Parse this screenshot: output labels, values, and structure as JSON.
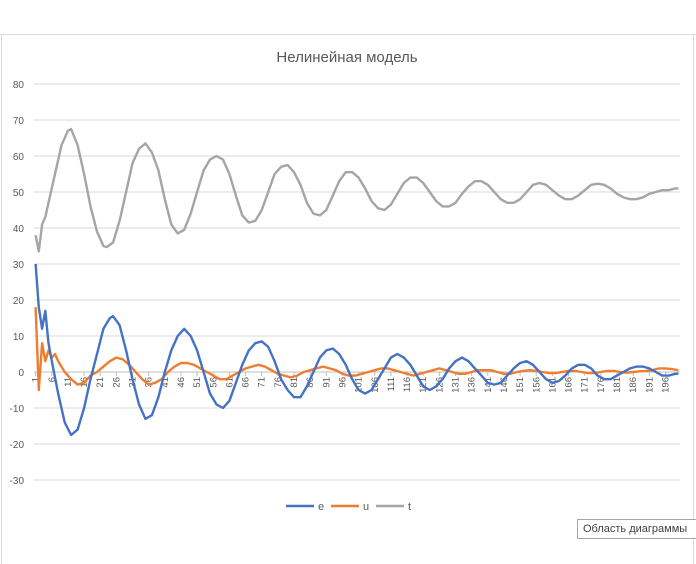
{
  "chart_data": {
    "type": "line",
    "title": "Нелинейная модель",
    "xlabel": "",
    "ylabel": "",
    "ylim": [
      -30,
      80
    ],
    "yticks": [
      80,
      70,
      60,
      50,
      40,
      30,
      20,
      10,
      0,
      -10,
      -20,
      -30
    ],
    "xtick_labels": [
      1,
      6,
      11,
      16,
      21,
      26,
      31,
      36,
      41,
      46,
      51,
      56,
      61,
      66,
      71,
      76,
      81,
      86,
      91,
      96,
      101,
      106,
      111,
      116,
      121,
      126,
      131,
      136,
      141,
      146,
      151,
      156,
      161,
      166,
      171,
      176,
      181,
      186,
      191,
      196
    ],
    "x_range": [
      1,
      200
    ],
    "grid": "horizontal",
    "legend_position": "bottom",
    "series": [
      {
        "name": "e",
        "color": "#4472c4",
        "points": [
          [
            1,
            30
          ],
          [
            2,
            18
          ],
          [
            3,
            12
          ],
          [
            4,
            17
          ],
          [
            5,
            8
          ],
          [
            6,
            3
          ],
          [
            8,
            -6
          ],
          [
            10,
            -14
          ],
          [
            12,
            -17.5
          ],
          [
            14,
            -16
          ],
          [
            16,
            -10
          ],
          [
            18,
            -2
          ],
          [
            20,
            5
          ],
          [
            22,
            12
          ],
          [
            24,
            15
          ],
          [
            25,
            15.5
          ],
          [
            27,
            13
          ],
          [
            29,
            6
          ],
          [
            31,
            -2
          ],
          [
            33,
            -9
          ],
          [
            35,
            -13
          ],
          [
            37,
            -12
          ],
          [
            39,
            -7
          ],
          [
            41,
            0
          ],
          [
            43,
            6
          ],
          [
            45,
            10
          ],
          [
            47,
            12
          ],
          [
            49,
            10
          ],
          [
            51,
            6
          ],
          [
            53,
            0
          ],
          [
            55,
            -6
          ],
          [
            57,
            -9
          ],
          [
            59,
            -10
          ],
          [
            61,
            -8
          ],
          [
            63,
            -3
          ],
          [
            65,
            2
          ],
          [
            67,
            6
          ],
          [
            69,
            8
          ],
          [
            71,
            8.5
          ],
          [
            73,
            7
          ],
          [
            75,
            3
          ],
          [
            77,
            -2
          ],
          [
            79,
            -5
          ],
          [
            81,
            -7
          ],
          [
            83,
            -7
          ],
          [
            85,
            -4
          ],
          [
            87,
            0
          ],
          [
            89,
            4
          ],
          [
            91,
            6
          ],
          [
            93,
            6.5
          ],
          [
            95,
            5
          ],
          [
            97,
            2
          ],
          [
            99,
            -2
          ],
          [
            101,
            -5
          ],
          [
            103,
            -6
          ],
          [
            105,
            -5
          ],
          [
            107,
            -2
          ],
          [
            109,
            1
          ],
          [
            111,
            4
          ],
          [
            113,
            5
          ],
          [
            115,
            4
          ],
          [
            117,
            2
          ],
          [
            119,
            -1
          ],
          [
            121,
            -4
          ],
          [
            123,
            -5
          ],
          [
            125,
            -4
          ],
          [
            127,
            -2
          ],
          [
            129,
            1
          ],
          [
            131,
            3
          ],
          [
            133,
            4
          ],
          [
            135,
            3
          ],
          [
            137,
            1
          ],
          [
            139,
            -1
          ],
          [
            141,
            -3
          ],
          [
            143,
            -3.5
          ],
          [
            145,
            -3
          ],
          [
            147,
            -1
          ],
          [
            149,
            1
          ],
          [
            151,
            2.5
          ],
          [
            153,
            3
          ],
          [
            155,
            2
          ],
          [
            157,
            0
          ],
          [
            159,
            -2
          ],
          [
            161,
            -3
          ],
          [
            163,
            -2.5
          ],
          [
            165,
            -1
          ],
          [
            167,
            1
          ],
          [
            169,
            2
          ],
          [
            171,
            2
          ],
          [
            173,
            1
          ],
          [
            175,
            -1
          ],
          [
            177,
            -2
          ],
          [
            179,
            -2
          ],
          [
            181,
            -1
          ],
          [
            183,
            0
          ],
          [
            185,
            1
          ],
          [
            187,
            1.5
          ],
          [
            189,
            1.5
          ],
          [
            191,
            1
          ],
          [
            193,
            0
          ],
          [
            195,
            -1
          ],
          [
            197,
            -1
          ],
          [
            199,
            -0.5
          ],
          [
            200,
            -0.5
          ]
        ]
      },
      {
        "name": "u",
        "color": "#ed7d31",
        "points": [
          [
            1,
            18
          ],
          [
            2,
            -5
          ],
          [
            3,
            8
          ],
          [
            4,
            3
          ],
          [
            5,
            6
          ],
          [
            6,
            4
          ],
          [
            7,
            5
          ],
          [
            8,
            3
          ],
          [
            10,
            0
          ],
          [
            12,
            -2
          ],
          [
            14,
            -3.5
          ],
          [
            16,
            -3
          ],
          [
            18,
            -1
          ],
          [
            20,
            0
          ],
          [
            22,
            1.5
          ],
          [
            24,
            3
          ],
          [
            26,
            4
          ],
          [
            28,
            3.5
          ],
          [
            30,
            2
          ],
          [
            32,
            0
          ],
          [
            34,
            -2
          ],
          [
            36,
            -3.5
          ],
          [
            38,
            -3
          ],
          [
            40,
            -2
          ],
          [
            42,
            0
          ],
          [
            44,
            1.5
          ],
          [
            46,
            2.5
          ],
          [
            48,
            2.5
          ],
          [
            50,
            2
          ],
          [
            52,
            1
          ],
          [
            54,
            0
          ],
          [
            56,
            -1
          ],
          [
            58,
            -2
          ],
          [
            60,
            -2
          ],
          [
            62,
            -1
          ],
          [
            64,
            0
          ],
          [
            66,
            1
          ],
          [
            68,
            1.5
          ],
          [
            70,
            2
          ],
          [
            72,
            1.5
          ],
          [
            74,
            0.5
          ],
          [
            76,
            -0.5
          ],
          [
            78,
            -1
          ],
          [
            80,
            -1.5
          ],
          [
            82,
            -1
          ],
          [
            84,
            0
          ],
          [
            86,
            0.5
          ],
          [
            88,
            1
          ],
          [
            90,
            1.5
          ],
          [
            92,
            1
          ],
          [
            94,
            0.5
          ],
          [
            96,
            -0.5
          ],
          [
            98,
            -1
          ],
          [
            100,
            -1
          ],
          [
            102,
            -0.5
          ],
          [
            104,
            0
          ],
          [
            106,
            0.5
          ],
          [
            108,
            1
          ],
          [
            110,
            1
          ],
          [
            112,
            0.5
          ],
          [
            114,
            0
          ],
          [
            116,
            -0.5
          ],
          [
            118,
            -1
          ],
          [
            120,
            -0.5
          ],
          [
            122,
            0
          ],
          [
            124,
            0.5
          ],
          [
            126,
            1
          ],
          [
            128,
            0.5
          ],
          [
            130,
            0
          ],
          [
            132,
            -0.5
          ],
          [
            134,
            -0.5
          ],
          [
            136,
            0
          ],
          [
            138,
            0.5
          ],
          [
            140,
            0.5
          ],
          [
            142,
            0.5
          ],
          [
            144,
            0
          ],
          [
            146,
            -0.5
          ],
          [
            148,
            -0.5
          ],
          [
            150,
            0
          ],
          [
            152,
            0.3
          ],
          [
            154,
            0.5
          ],
          [
            156,
            0.3
          ],
          [
            158,
            0
          ],
          [
            160,
            -0.3
          ],
          [
            162,
            -0.3
          ],
          [
            164,
            0
          ],
          [
            166,
            0.3
          ],
          [
            168,
            0.3
          ],
          [
            170,
            0
          ],
          [
            172,
            -0.3
          ],
          [
            174,
            -0.3
          ],
          [
            176,
            0
          ],
          [
            178,
            0.3
          ],
          [
            180,
            0.3
          ],
          [
            182,
            0
          ],
          [
            184,
            -0.2
          ],
          [
            186,
            0
          ],
          [
            188,
            0.2
          ],
          [
            190,
            0.3
          ],
          [
            192,
            0.5
          ],
          [
            194,
            1
          ],
          [
            196,
            1
          ],
          [
            198,
            0.8
          ],
          [
            200,
            0.5
          ]
        ]
      },
      {
        "name": "t",
        "color": "#a5a5a5",
        "points": [
          [
            1,
            38
          ],
          [
            2,
            33.5
          ],
          [
            3,
            41
          ],
          [
            4,
            43
          ],
          [
            5,
            47
          ],
          [
            7,
            55
          ],
          [
            9,
            63
          ],
          [
            11,
            67
          ],
          [
            12,
            67.5
          ],
          [
            14,
            63
          ],
          [
            16,
            55
          ],
          [
            18,
            46
          ],
          [
            20,
            39
          ],
          [
            22,
            35
          ],
          [
            23,
            34.7
          ],
          [
            25,
            36
          ],
          [
            27,
            42
          ],
          [
            29,
            50
          ],
          [
            31,
            58
          ],
          [
            33,
            62
          ],
          [
            35,
            63.5
          ],
          [
            37,
            61
          ],
          [
            39,
            56
          ],
          [
            41,
            48
          ],
          [
            43,
            41
          ],
          [
            45,
            38.5
          ],
          [
            47,
            39.5
          ],
          [
            49,
            44
          ],
          [
            51,
            50
          ],
          [
            53,
            56
          ],
          [
            55,
            59
          ],
          [
            57,
            60
          ],
          [
            59,
            59
          ],
          [
            61,
            55
          ],
          [
            63,
            49
          ],
          [
            65,
            43.5
          ],
          [
            67,
            41.5
          ],
          [
            69,
            42
          ],
          [
            71,
            45
          ],
          [
            73,
            50
          ],
          [
            75,
            55
          ],
          [
            77,
            57
          ],
          [
            79,
            57.5
          ],
          [
            81,
            55.5
          ],
          [
            83,
            52
          ],
          [
            85,
            47
          ],
          [
            87,
            44
          ],
          [
            89,
            43.5
          ],
          [
            91,
            45
          ],
          [
            93,
            49
          ],
          [
            95,
            53
          ],
          [
            97,
            55.5
          ],
          [
            99,
            55.5
          ],
          [
            101,
            54
          ],
          [
            103,
            51
          ],
          [
            105,
            47.5
          ],
          [
            107,
            45.5
          ],
          [
            109,
            45
          ],
          [
            111,
            46.5
          ],
          [
            113,
            49.5
          ],
          [
            115,
            52.5
          ],
          [
            117,
            54
          ],
          [
            119,
            54
          ],
          [
            121,
            52.5
          ],
          [
            123,
            50
          ],
          [
            125,
            47.5
          ],
          [
            127,
            46
          ],
          [
            129,
            46
          ],
          [
            131,
            47
          ],
          [
            133,
            49.5
          ],
          [
            135,
            51.5
          ],
          [
            137,
            53
          ],
          [
            139,
            53
          ],
          [
            141,
            52
          ],
          [
            143,
            50
          ],
          [
            145,
            48
          ],
          [
            147,
            47
          ],
          [
            149,
            47
          ],
          [
            151,
            48
          ],
          [
            153,
            50
          ],
          [
            155,
            52
          ],
          [
            157,
            52.5
          ],
          [
            159,
            52
          ],
          [
            161,
            50.5
          ],
          [
            163,
            49
          ],
          [
            165,
            48
          ],
          [
            167,
            48
          ],
          [
            169,
            49
          ],
          [
            171,
            50.5
          ],
          [
            173,
            52
          ],
          [
            175,
            52.3
          ],
          [
            177,
            52
          ],
          [
            179,
            51
          ],
          [
            181,
            49.5
          ],
          [
            183,
            48.5
          ],
          [
            185,
            48
          ],
          [
            187,
            48
          ],
          [
            189,
            48.5
          ],
          [
            191,
            49.5
          ],
          [
            193,
            50
          ],
          [
            195,
            50.5
          ],
          [
            197,
            50.5
          ],
          [
            199,
            51
          ],
          [
            200,
            51
          ]
        ]
      }
    ]
  },
  "chart_area_tooltip": "Область диаграммы"
}
